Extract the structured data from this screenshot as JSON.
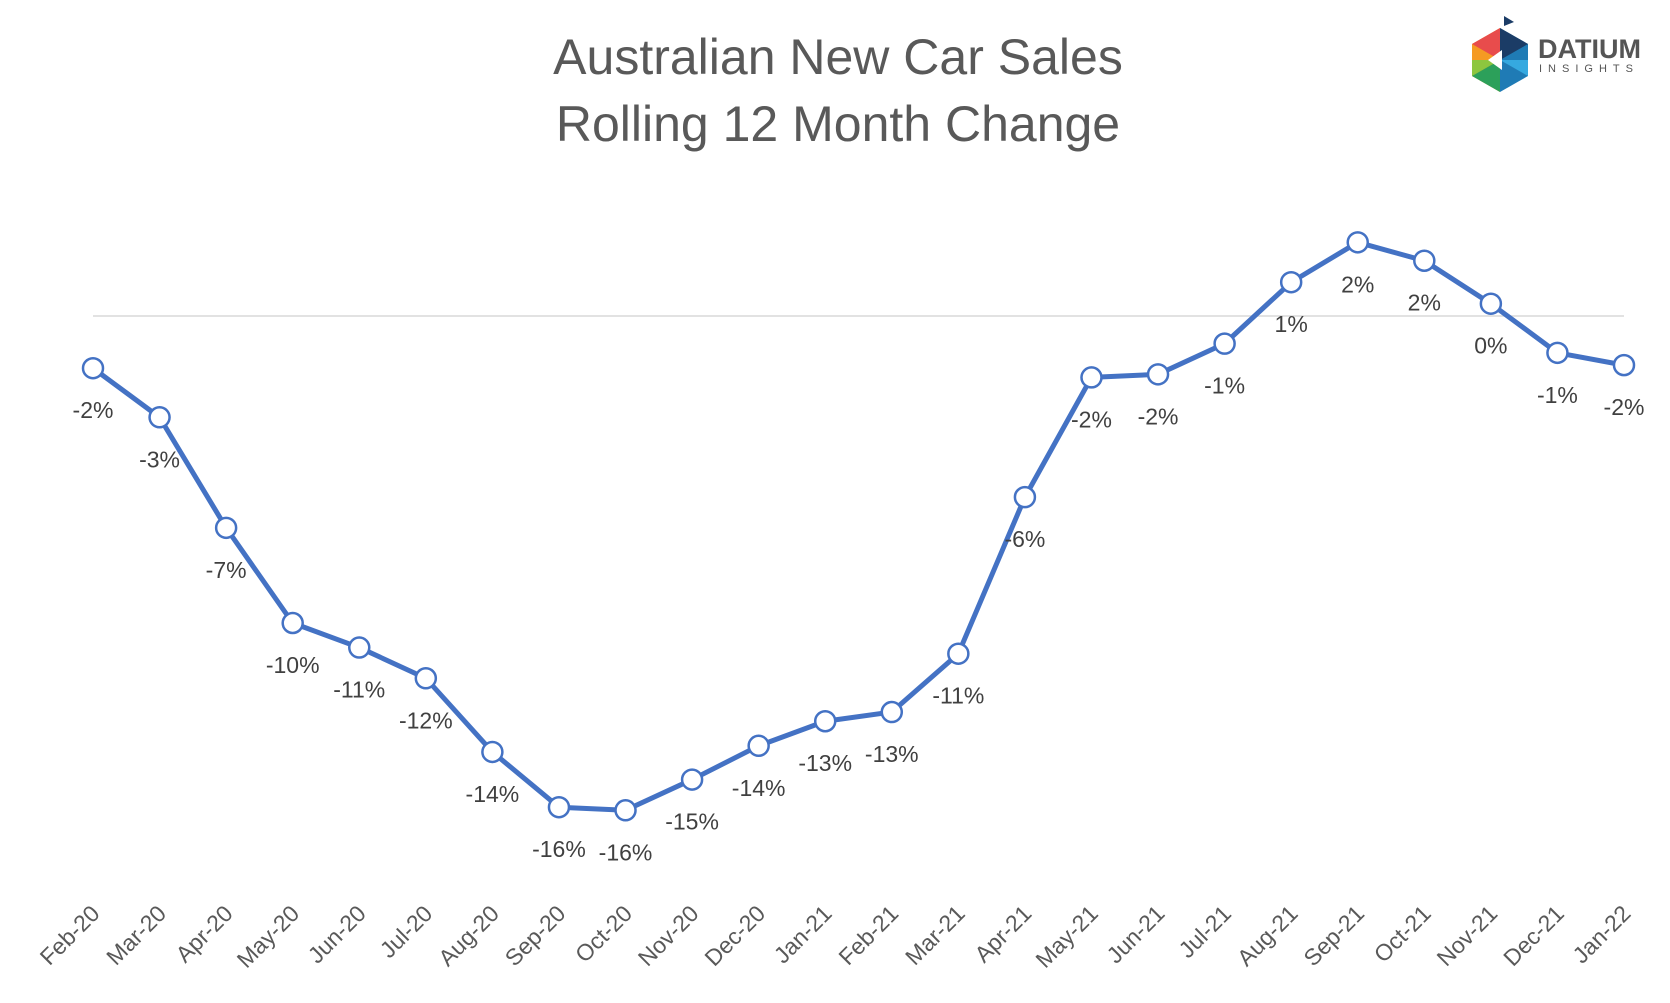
{
  "chart_data": {
    "type": "line",
    "title": [
      "Australian New Car Sales",
      "Rolling 12 Month Change"
    ],
    "xlabel": "",
    "ylabel": "",
    "categories": [
      "Feb-20",
      "Mar-20",
      "Apr-20",
      "May-20",
      "Jun-20",
      "Jul-20",
      "Aug-20",
      "Sep-20",
      "Oct-20",
      "Nov-20",
      "Dec-20",
      "Jan-21",
      "Feb-21",
      "Mar-21",
      "Apr-21",
      "May-21",
      "Jun-21",
      "Jul-21",
      "Aug-21",
      "Sep-21",
      "Oct-21",
      "Nov-21",
      "Dec-21",
      "Jan-22"
    ],
    "series": [
      {
        "values": [
          -1.7,
          -3.3,
          -6.9,
          -10.0,
          -10.8,
          -11.8,
          -14.2,
          -16.0,
          -16.1,
          -15.1,
          -14.0,
          -13.2,
          -12.9,
          -11.0,
          -5.9,
          -2.0,
          -1.9,
          -0.9,
          1.1,
          2.4,
          1.8,
          0.4,
          -1.2,
          -1.6
        ],
        "labels": [
          "-2%",
          "-3%",
          "-7%",
          "-10%",
          "-11%",
          "-12%",
          "-14%",
          "-16%",
          "-16%",
          "-15%",
          "-14%",
          "-13%",
          "-13%",
          "-11%",
          "-6%",
          "-2%",
          "-2%",
          "-1%",
          "1%",
          "2%",
          "2%",
          "0%",
          "-1%",
          "-2%"
        ],
        "color": "#4472C4"
      }
    ],
    "zero_line": true,
    "grid": false,
    "legend": "none",
    "y_axis_labels": false
  },
  "logo": {
    "name": "DATIUM",
    "sub": "INSIGHTS"
  }
}
